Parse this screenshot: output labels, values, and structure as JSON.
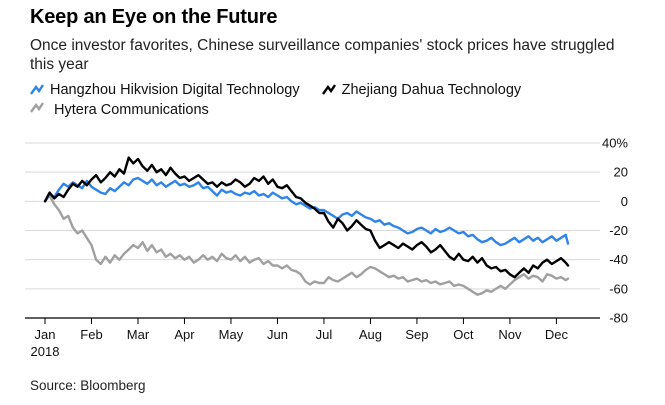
{
  "title": "Keep an Eye on the Future",
  "subtitle": "Once investor favorites, Chinese surveillance companies' stock prices have struggled this year",
  "source": "Source: Bloomberg",
  "colors": {
    "hikvision": "#2f84ea",
    "dahua": "#000000",
    "hytera": "#a0a0a0",
    "grid": "#d9d9d9",
    "axis": "#000000"
  },
  "chart_data": {
    "type": "line",
    "title": "Keep an Eye on the Future",
    "xlabel": "",
    "ylabel": "",
    "ylim": [
      -80,
      40
    ],
    "xlim": [
      0,
      11.4
    ],
    "y_ticks": [
      40,
      20,
      0,
      -20,
      -40,
      -60,
      -80
    ],
    "y_tick_labels": [
      "40%",
      "20",
      "0",
      "-20",
      "-40",
      "-60",
      "-80"
    ],
    "x_ticks": [
      0,
      1,
      2,
      3,
      4,
      5,
      6,
      7,
      8,
      9,
      10,
      11
    ],
    "x_tick_labels": [
      "Jan",
      "Feb",
      "Mar",
      "Apr",
      "May",
      "Jun",
      "Jul",
      "Aug",
      "Sep",
      "Oct",
      "Nov",
      "Dec"
    ],
    "x_sublabel": "2018",
    "legend_position": "top-left",
    "series": [
      {
        "name": "Hangzhou Hikvision Digital Technology",
        "color_key": "hikvision",
        "x": [
          0,
          0.1,
          0.2,
          0.3,
          0.4,
          0.5,
          0.6,
          0.7,
          0.8,
          0.9,
          1.0,
          1.1,
          1.2,
          1.3,
          1.4,
          1.5,
          1.6,
          1.7,
          1.8,
          1.9,
          2.0,
          2.1,
          2.2,
          2.3,
          2.4,
          2.5,
          2.6,
          2.7,
          2.8,
          2.9,
          3.0,
          3.1,
          3.2,
          3.3,
          3.4,
          3.5,
          3.6,
          3.7,
          3.8,
          3.9,
          4.0,
          4.1,
          4.2,
          4.3,
          4.4,
          4.5,
          4.6,
          4.7,
          4.8,
          4.9,
          5.0,
          5.1,
          5.2,
          5.3,
          5.4,
          5.5,
          5.6,
          5.7,
          5.8,
          5.9,
          6.0,
          6.1,
          6.2,
          6.3,
          6.4,
          6.5,
          6.6,
          6.7,
          6.8,
          6.9,
          7.0,
          7.1,
          7.2,
          7.3,
          7.4,
          7.5,
          7.6,
          7.7,
          7.8,
          7.9,
          8.0,
          8.1,
          8.2,
          8.3,
          8.4,
          8.5,
          8.6,
          8.7,
          8.8,
          8.9,
          9.0,
          9.1,
          9.2,
          9.3,
          9.4,
          9.5,
          9.6,
          9.7,
          9.8,
          9.9,
          10.0,
          10.1,
          10.2,
          10.3,
          10.4,
          10.5,
          10.6,
          10.7,
          10.8,
          10.9,
          11.0,
          11.1,
          11.2,
          11.25
        ],
        "values": [
          0,
          5,
          3,
          8,
          12,
          10,
          13,
          11,
          9,
          14,
          10,
          8,
          6,
          5,
          9,
          7,
          10,
          13,
          11,
          15,
          16,
          14,
          12,
          15,
          11,
          13,
          10,
          12,
          14,
          11,
          12,
          10,
          11,
          13,
          9,
          10,
          7,
          4,
          8,
          6,
          7,
          5,
          4,
          6,
          5,
          7,
          4,
          5,
          3,
          6,
          4,
          2,
          3,
          0,
          -2,
          -1,
          -3,
          -5,
          -4,
          -6,
          -6,
          -8,
          -10,
          -12,
          -9,
          -8,
          -10,
          -7,
          -9,
          -11,
          -12,
          -14,
          -13,
          -16,
          -15,
          -17,
          -18,
          -20,
          -22,
          -21,
          -19,
          -18,
          -20,
          -22,
          -19,
          -21,
          -20,
          -18,
          -20,
          -22,
          -21,
          -24,
          -23,
          -26,
          -28,
          -27,
          -25,
          -28,
          -30,
          -29,
          -27,
          -25,
          -28,
          -26,
          -24,
          -27,
          -25,
          -28,
          -26,
          -24,
          -27,
          -25,
          -23,
          -29
        ]
      },
      {
        "name": "Zhejiang Dahua Technology",
        "color_key": "dahua",
        "x": [
          0,
          0.1,
          0.2,
          0.3,
          0.4,
          0.5,
          0.6,
          0.7,
          0.8,
          0.9,
          1.0,
          1.1,
          1.2,
          1.3,
          1.4,
          1.5,
          1.6,
          1.7,
          1.8,
          1.9,
          2.0,
          2.1,
          2.2,
          2.3,
          2.4,
          2.5,
          2.6,
          2.7,
          2.8,
          2.9,
          3.0,
          3.1,
          3.2,
          3.3,
          3.4,
          3.5,
          3.6,
          3.7,
          3.8,
          3.9,
          4.0,
          4.1,
          4.2,
          4.3,
          4.4,
          4.5,
          4.6,
          4.7,
          4.8,
          4.9,
          5.0,
          5.1,
          5.2,
          5.3,
          5.4,
          5.5,
          5.6,
          5.7,
          5.8,
          5.9,
          6.0,
          6.1,
          6.2,
          6.3,
          6.4,
          6.5,
          6.6,
          6.7,
          6.8,
          6.9,
          7.0,
          7.1,
          7.2,
          7.3,
          7.4,
          7.5,
          7.6,
          7.7,
          7.8,
          7.9,
          8.0,
          8.1,
          8.2,
          8.3,
          8.4,
          8.5,
          8.6,
          8.7,
          8.8,
          8.9,
          9.0,
          9.1,
          9.2,
          9.3,
          9.4,
          9.5,
          9.6,
          9.7,
          9.8,
          9.9,
          10.0,
          10.1,
          10.2,
          10.3,
          10.4,
          10.5,
          10.6,
          10.7,
          10.8,
          10.9,
          11.0,
          11.1,
          11.2,
          11.25
        ],
        "values": [
          0,
          6,
          2,
          5,
          3,
          8,
          12,
          10,
          14,
          11,
          15,
          18,
          13,
          16,
          20,
          17,
          22,
          19,
          30,
          26,
          29,
          24,
          21,
          25,
          20,
          22,
          18,
          23,
          19,
          16,
          17,
          14,
          16,
          18,
          15,
          12,
          13,
          10,
          13,
          11,
          12,
          15,
          13,
          10,
          12,
          16,
          14,
          17,
          12,
          15,
          10,
          9,
          11,
          7,
          3,
          2,
          -1,
          -3,
          -5,
          -8,
          -8,
          -14,
          -18,
          -12,
          -15,
          -20,
          -17,
          -13,
          -16,
          -19,
          -20,
          -27,
          -32,
          -30,
          -28,
          -30,
          -32,
          -29,
          -31,
          -33,
          -30,
          -28,
          -31,
          -35,
          -33,
          -30,
          -34,
          -38,
          -40,
          -36,
          -40,
          -41,
          -38,
          -42,
          -39,
          -44,
          -46,
          -45,
          -48,
          -47,
          -50,
          -52,
          -49,
          -46,
          -49,
          -44,
          -46,
          -42,
          -40,
          -43,
          -41,
          -39,
          -42,
          -44
        ]
      },
      {
        "name": "Hytera Communications",
        "color_key": "hytera",
        "x": [
          0,
          0.1,
          0.2,
          0.3,
          0.4,
          0.5,
          0.6,
          0.7,
          0.8,
          0.9,
          1.0,
          1.1,
          1.2,
          1.3,
          1.4,
          1.5,
          1.6,
          1.7,
          1.8,
          1.9,
          2.0,
          2.1,
          2.2,
          2.3,
          2.4,
          2.5,
          2.6,
          2.7,
          2.8,
          2.9,
          3.0,
          3.1,
          3.2,
          3.3,
          3.4,
          3.5,
          3.6,
          3.7,
          3.8,
          3.9,
          4.0,
          4.1,
          4.2,
          4.3,
          4.4,
          4.5,
          4.6,
          4.7,
          4.8,
          4.9,
          5.0,
          5.1,
          5.2,
          5.3,
          5.4,
          5.5,
          5.6,
          5.7,
          5.8,
          5.9,
          6.0,
          6.1,
          6.2,
          6.3,
          6.4,
          6.5,
          6.6,
          6.7,
          6.8,
          6.9,
          7.0,
          7.1,
          7.2,
          7.3,
          7.4,
          7.5,
          7.6,
          7.7,
          7.8,
          7.9,
          8.0,
          8.1,
          8.2,
          8.3,
          8.4,
          8.5,
          8.6,
          8.7,
          8.8,
          8.9,
          9.0,
          9.1,
          9.2,
          9.3,
          9.4,
          9.5,
          9.6,
          9.7,
          9.8,
          9.9,
          10.0,
          10.1,
          10.2,
          10.3,
          10.4,
          10.5,
          10.6,
          10.7,
          10.8,
          10.9,
          11.0,
          11.1,
          11.2,
          11.25
        ],
        "values": [
          0,
          4,
          -2,
          -6,
          -12,
          -10,
          -18,
          -22,
          -20,
          -25,
          -30,
          -40,
          -43,
          -38,
          -42,
          -37,
          -40,
          -36,
          -33,
          -30,
          -32,
          -28,
          -34,
          -30,
          -35,
          -33,
          -38,
          -36,
          -39,
          -37,
          -40,
          -38,
          -42,
          -40,
          -37,
          -40,
          -38,
          -41,
          -36,
          -39,
          -40,
          -37,
          -41,
          -38,
          -42,
          -40,
          -39,
          -43,
          -41,
          -44,
          -44,
          -46,
          -44,
          -47,
          -48,
          -50,
          -55,
          -57,
          -55,
          -56,
          -56,
          -52,
          -54,
          -55,
          -53,
          -51,
          -49,
          -52,
          -50,
          -47,
          -45,
          -46,
          -48,
          -50,
          -52,
          -51,
          -53,
          -52,
          -55,
          -54,
          -53,
          -55,
          -54,
          -56,
          -55,
          -57,
          -56,
          -55,
          -58,
          -57,
          -58,
          -60,
          -62,
          -64,
          -63,
          -61,
          -62,
          -60,
          -58,
          -60,
          -57,
          -54,
          -52,
          -50,
          -53,
          -51,
          -52,
          -55,
          -50,
          -51,
          -53,
          -52,
          -54,
          -53
        ]
      }
    ]
  }
}
